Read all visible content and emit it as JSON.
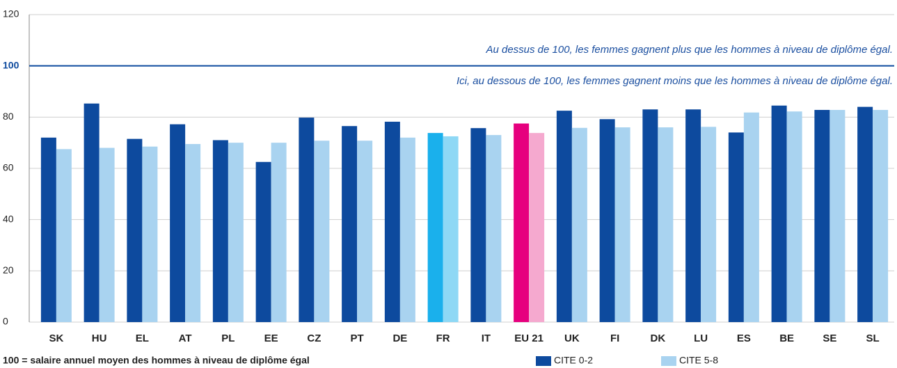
{
  "chart_data": {
    "type": "bar",
    "categories": [
      "SK",
      "HU",
      "EL",
      "AT",
      "PL",
      "EE",
      "CZ",
      "PT",
      "DE",
      "FR",
      "IT",
      "EU 21",
      "UK",
      "FI",
      "DK",
      "LU",
      "ES",
      "BE",
      "SE",
      "SL"
    ],
    "series": [
      {
        "name": "CITE 0-2",
        "color": "#0d4a9e",
        "point_colors": {
          "9": "#1ab0ec",
          "11": "#e6007e"
        },
        "values": [
          72,
          85.3,
          71.5,
          77.2,
          71,
          62.5,
          79.8,
          76.5,
          78.2,
          73.8,
          75.7,
          77.5,
          82.5,
          79.2,
          83,
          83,
          74,
          84.5,
          82.8,
          84
        ]
      },
      {
        "name": "CITE 5-8",
        "color": "#a9d3f0",
        "point_colors": {
          "9": "#8ed8f5",
          "11": "#f5a9cf"
        },
        "values": [
          67.5,
          68,
          68.5,
          69.5,
          70,
          70,
          70.8,
          70.8,
          72,
          72.5,
          73,
          73.8,
          75.8,
          76,
          76,
          76.2,
          81.8,
          82.2,
          82.8,
          82.8
        ]
      }
    ],
    "ylim": [
      0,
      120
    ],
    "yticks": [
      0,
      20,
      40,
      60,
      80,
      100,
      120
    ],
    "grid": true,
    "reference_line": {
      "value": 100,
      "color": "#0d4a9e"
    },
    "annotations": {
      "above": "Au dessus de 100, les femmes gagnent plus que les hommes à niveau de diplôme égal.",
      "below": "Ici, au dessous de 100, les femmes gagnent moins que les hommes à niveau de diplôme égal."
    },
    "footnote": "100 = salaire annuel moyen des hommes à niveau de diplôme égal",
    "legend": "bottom-right"
  }
}
